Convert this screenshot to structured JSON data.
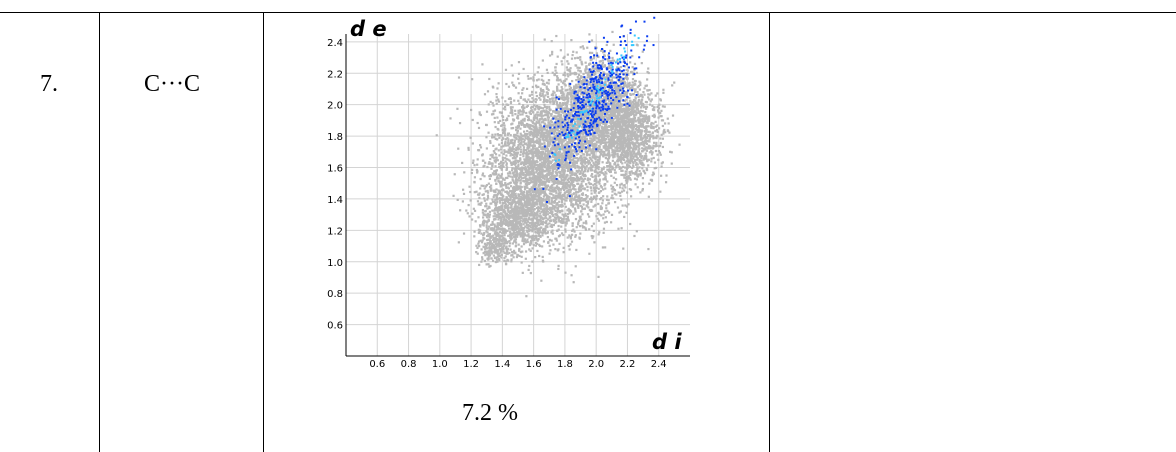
{
  "row": {
    "number": "7.",
    "contact": "C···C",
    "percentage": "7.2 %"
  },
  "chart_data": {
    "type": "scatter",
    "title": "",
    "xlabel": "d i",
    "ylabel": "d e",
    "xlim": [
      0.4,
      2.6
    ],
    "ylim": [
      0.4,
      2.45
    ],
    "x_ticks": [
      "0.6",
      "0.8",
      "1.0",
      "1.2",
      "1.4",
      "1.6",
      "1.8",
      "2.0",
      "2.2",
      "2.4"
    ],
    "y_ticks": [
      "0.6",
      "0.8",
      "1.0",
      "1.2",
      "1.4",
      "1.6",
      "1.8",
      "2.0",
      "2.2",
      "2.4"
    ],
    "grid": true,
    "colors": {
      "background_points": "#b8b8b8",
      "highlight_points": "#0a3cf0",
      "highlight_core": "#36c8ff"
    },
    "series": [
      {
        "role": "all-contacts",
        "color": "#b8b8b8",
        "regions": [
          {
            "center": [
              1.7,
              1.65
            ],
            "spread": [
              0.38,
              0.42
            ]
          },
          {
            "center": [
              2.0,
              2.0
            ],
            "spread": [
              0.28,
              0.28
            ]
          },
          {
            "center": [
              1.5,
              1.3
            ],
            "spread": [
              0.22,
              0.2
            ]
          },
          {
            "center": [
              2.2,
              1.8
            ],
            "spread": [
              0.18,
              0.25
            ]
          },
          {
            "center": [
              1.35,
              1.1
            ],
            "spread": [
              0.1,
              0.1
            ]
          }
        ]
      },
      {
        "role": "C-C-contacts",
        "color": "#0a3cf0",
        "regions": [
          {
            "center": [
              1.98,
              2.04
            ],
            "spread": [
              0.14,
              0.16
            ]
          }
        ]
      }
    ]
  }
}
